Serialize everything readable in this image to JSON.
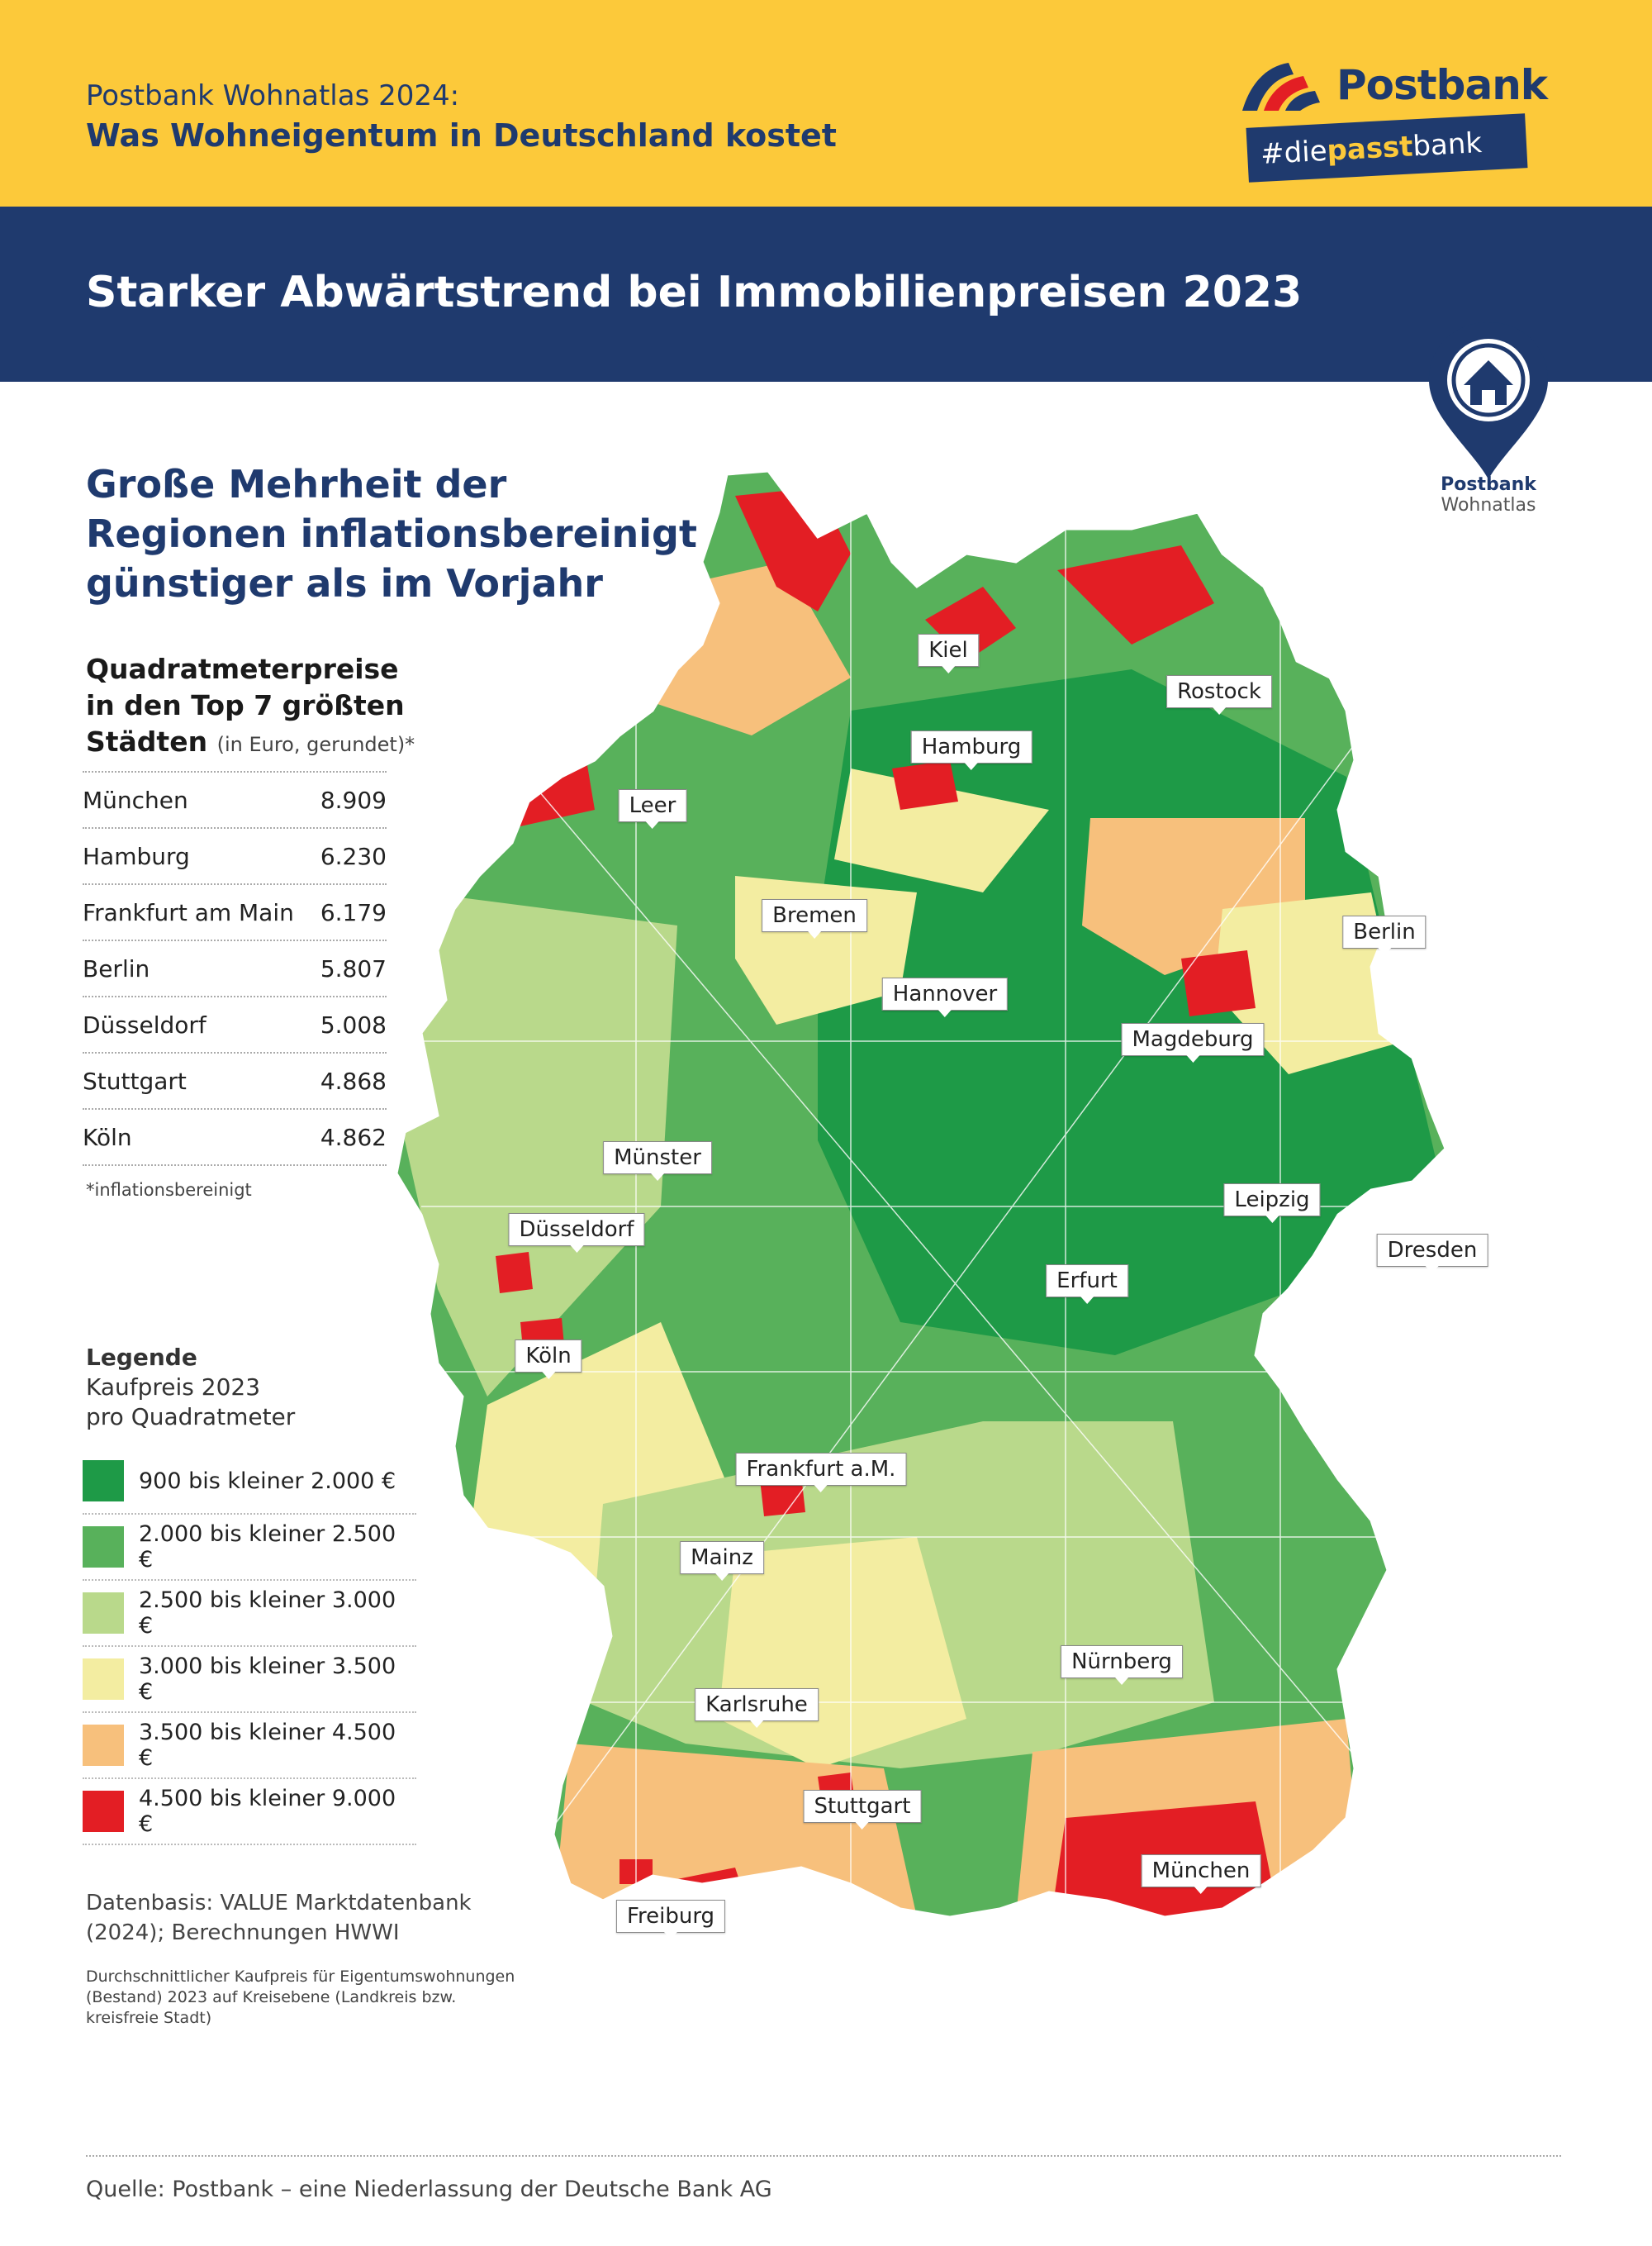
{
  "header": {
    "subtitle": "Postbank Wohnatlas 2024:",
    "title": "Was Wohneigentum in Deutschland kostet",
    "brand": "Postbank",
    "hashtag_pre": "#die",
    "hashtag_bold": "passt",
    "hashtag_post": "bank"
  },
  "banner": {
    "title": "Starker Abwärtstrend bei  Immobilienpreisen 2023"
  },
  "badge": {
    "line1": "Postbank",
    "line2": "Wohnatlas"
  },
  "headline": "Große Mehrheit der Regionen inflationsbereinigt günstiger als im Vorjahr",
  "table": {
    "title_line1": "Quadratmeterpreise",
    "title_line2": "in den Top 7 größten",
    "title_line3": "Städten",
    "title_note": "(in Euro, gerundet)*",
    "rows": [
      {
        "city": "München",
        "value": "8.909"
      },
      {
        "city": "Hamburg",
        "value": "6.230"
      },
      {
        "city": "Frankfurt am Main",
        "value": "6.179"
      },
      {
        "city": "Berlin",
        "value": "5.807"
      },
      {
        "city": "Düsseldorf",
        "value": "5.008"
      },
      {
        "city": "Stuttgart",
        "value": "4.868"
      },
      {
        "city": "Köln",
        "value": "4.862"
      }
    ],
    "footnote": "*inflationsbereinigt"
  },
  "legend": {
    "title": "Legende",
    "line2": "Kaufpreis 2023",
    "line3": "pro Quadratmeter",
    "items": [
      {
        "label": "900 bis kleiner 2.000 €",
        "color": "#1e9a47"
      },
      {
        "label": "2.000 bis kleiner 2.500 €",
        "color": "#58b15b"
      },
      {
        "label": "2.500 bis kleiner 3.000 €",
        "color": "#b9d98b"
      },
      {
        "label": "3.000 bis kleiner 3.500 €",
        "color": "#f3eda1"
      },
      {
        "label": "3.500 bis kleiner 4.500 €",
        "color": "#f7c07c"
      },
      {
        "label": "4.500 bis kleiner 9.000 €",
        "color": "#e31e24"
      }
    ]
  },
  "source": {
    "line1": "Datenbasis: VALUE Marktdatenbank (2024); Berechnungen HWWI",
    "line2": "Durchschnittlicher Kaufpreis für Eigentumswohnungen (Bestand) 2023 auf Kreisebene (Landkreis bzw. kreisfreie Stadt)",
    "quelle": "Quelle: Postbank – eine Niederlassung der Deutsche Bank AG"
  },
  "map": {
    "cities": [
      {
        "id": "kiel",
        "name": "Kiel"
      },
      {
        "id": "rostock",
        "name": "Rostock"
      },
      {
        "id": "hamburg",
        "name": "Hamburg"
      },
      {
        "id": "leer",
        "name": "Leer"
      },
      {
        "id": "bremen",
        "name": "Bremen"
      },
      {
        "id": "berlin",
        "name": "Berlin"
      },
      {
        "id": "hannover",
        "name": "Hannover"
      },
      {
        "id": "magdeburg",
        "name": "Magdeburg"
      },
      {
        "id": "muenster",
        "name": "Münster"
      },
      {
        "id": "leipzig",
        "name": "Leipzig"
      },
      {
        "id": "duesseldorf",
        "name": "Düsseldorf"
      },
      {
        "id": "dresden",
        "name": "Dresden"
      },
      {
        "id": "erfurt",
        "name": "Erfurt"
      },
      {
        "id": "koeln",
        "name": "Köln"
      },
      {
        "id": "frankfurt",
        "name": "Frankfurt a.M."
      },
      {
        "id": "mainz",
        "name": "Mainz"
      },
      {
        "id": "nuernberg",
        "name": "Nürnberg"
      },
      {
        "id": "karlsruhe",
        "name": "Karlsruhe"
      },
      {
        "id": "stuttgart",
        "name": "Stuttgart"
      },
      {
        "id": "muenchen",
        "name": "München"
      },
      {
        "id": "freiburg",
        "name": "Freiburg"
      }
    ]
  }
}
